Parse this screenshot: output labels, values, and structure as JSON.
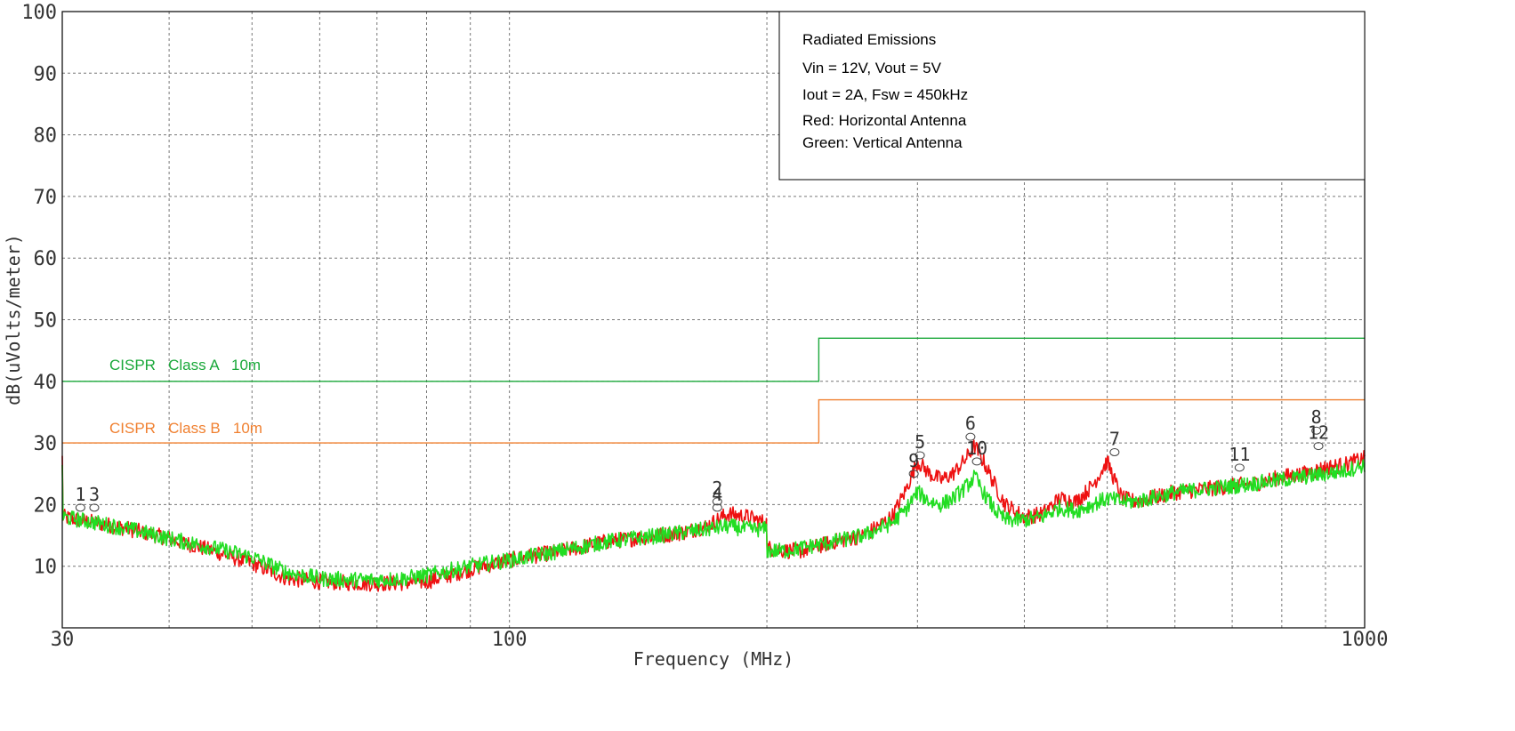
{
  "chart_data": {
    "type": "line",
    "xscale": "log",
    "xlim": [
      30,
      1000
    ],
    "ylim": [
      0,
      100
    ],
    "xlabel": "Frequency (MHz)",
    "ylabel": "dB(uVolts/meter)",
    "grid": true,
    "x_ticks": [
      30,
      100,
      1000
    ],
    "x_tick_labels": [
      "30",
      "100",
      "1000"
    ],
    "y_ticks": [
      10,
      20,
      30,
      40,
      50,
      60,
      70,
      80,
      90,
      100
    ],
    "y_tick_labels": [
      "10",
      "20",
      "30",
      "40",
      "50",
      "60",
      "70",
      "80",
      "90",
      "100"
    ],
    "legend_box": {
      "placement": "top-right",
      "lines": [
        "Radiated Emissions",
        "Vin = 12V, Vout = 5V",
        "Iout = 2A, Fsw = 450kHz",
        "Red: Horizontal Antenna",
        "Green: Vertical Antenna"
      ]
    },
    "limits": [
      {
        "label": "CISPR   Class A   10m",
        "color": "#1aa83a",
        "points": [
          [
            30,
            40
          ],
          [
            230,
            40
          ],
          [
            230,
            47
          ],
          [
            1000,
            47
          ]
        ]
      },
      {
        "label": "CISPR   Class B   10m",
        "color": "#f08030",
        "points": [
          [
            30,
            30
          ],
          [
            230,
            30
          ],
          [
            230,
            37
          ],
          [
            1000,
            37
          ]
        ]
      }
    ],
    "series": [
      {
        "color": "#ee1111",
        "x": [
          30,
          33,
          36,
          40,
          45,
          50,
          55,
          60,
          65,
          70,
          75,
          80,
          90,
          100,
          110,
          120,
          130,
          140,
          150,
          160,
          170,
          180,
          190,
          199.9,
          200,
          210,
          220,
          240,
          260,
          280,
          290,
          300,
          310,
          320,
          330,
          340,
          350,
          360,
          370,
          380,
          400,
          420,
          440,
          460,
          480,
          500,
          520,
          540,
          560,
          580,
          600,
          650,
          700,
          750,
          800,
          850,
          900,
          950,
          1000
        ],
        "y": [
          18,
          17,
          16,
          14.5,
          12.5,
          10.5,
          8,
          7.5,
          7.3,
          7.2,
          7.3,
          7.5,
          9.5,
          11,
          12,
          13,
          14,
          14.5,
          15,
          15.5,
          16.5,
          18.5,
          18,
          17,
          13,
          12.5,
          12.5,
          14,
          15,
          18,
          22,
          27,
          25,
          24,
          25,
          27,
          29.5,
          26.5,
          23,
          20,
          18,
          18.5,
          21,
          20.5,
          23,
          27,
          21,
          20.5,
          21,
          21.5,
          22,
          22.5,
          23,
          23.5,
          24.5,
          25,
          26,
          26.5,
          27.5
        ]
      },
      {
        "color": "#22dd22",
        "x": [
          30,
          33,
          36,
          40,
          45,
          50,
          55,
          60,
          65,
          70,
          75,
          80,
          90,
          100,
          110,
          120,
          130,
          140,
          150,
          160,
          170,
          180,
          190,
          199.9,
          200,
          210,
          220,
          240,
          260,
          280,
          290,
          300,
          310,
          320,
          330,
          340,
          350,
          360,
          370,
          380,
          400,
          420,
          440,
          460,
          480,
          500,
          520,
          540,
          560,
          580,
          600,
          650,
          700,
          750,
          800,
          850,
          900,
          950,
          1000
        ],
        "y": [
          18,
          17,
          16,
          14.5,
          13,
          11.5,
          9,
          8,
          7.8,
          7.8,
          8,
          8.5,
          10,
          11,
          12,
          13,
          14,
          14.5,
          15,
          15.5,
          16,
          16.5,
          16,
          16,
          12.5,
          12.5,
          13,
          14,
          15,
          17,
          19,
          22,
          20.5,
          20,
          21,
          22.5,
          24.5,
          21.5,
          19,
          17.5,
          17.5,
          18,
          19.5,
          19,
          20,
          21,
          20.5,
          20.5,
          21,
          21.5,
          22,
          22.5,
          23,
          23.5,
          24,
          24.5,
          25,
          25.5,
          26.5
        ]
      }
    ],
    "markers": [
      {
        "label": "1",
        "x": 31.5,
        "y": 19.5
      },
      {
        "label": "3",
        "x": 32.7,
        "y": 19.5
      },
      {
        "label": "2",
        "x": 175,
        "y": 20.5
      },
      {
        "label": "4",
        "x": 175,
        "y": 19.5
      },
      {
        "label": "5",
        "x": 302,
        "y": 28
      },
      {
        "label": "9",
        "x": 297,
        "y": 25
      },
      {
        "label": "6",
        "x": 346,
        "y": 31
      },
      {
        "label": "10",
        "x": 352,
        "y": 27
      },
      {
        "label": "7",
        "x": 510,
        "y": 28.5
      },
      {
        "label": "11",
        "x": 714,
        "y": 26
      },
      {
        "label": "8",
        "x": 878,
        "y": 32
      },
      {
        "label": "12",
        "x": 883,
        "y": 29.5
      }
    ]
  }
}
